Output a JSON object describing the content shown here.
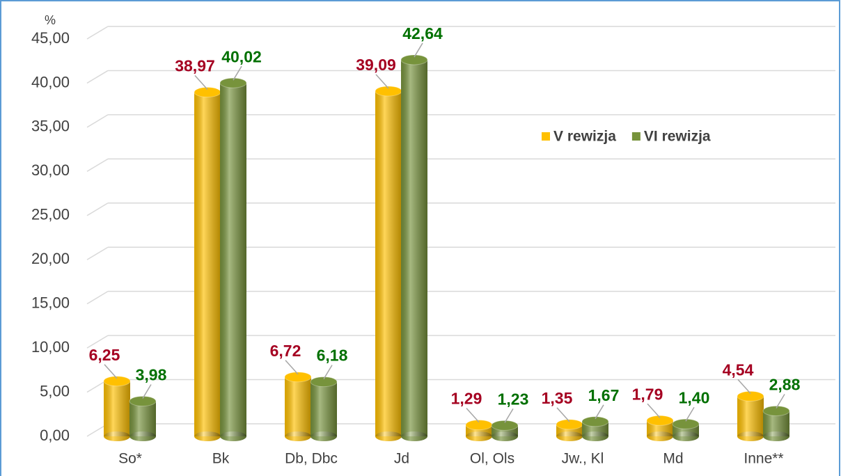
{
  "chart_data": {
    "type": "bar",
    "y_label": "%",
    "categories": [
      "So*",
      "Bk",
      "Db, Dbc",
      "Jd",
      "Ol, Ols",
      "Jw., Kl",
      "Md",
      "Inne**"
    ],
    "series": [
      {
        "name": "V rewizja",
        "color": "#ffc000",
        "label_color": "#a50021",
        "values": [
          6.25,
          38.97,
          6.72,
          39.09,
          1.29,
          1.35,
          1.79,
          4.54
        ],
        "value_labels": [
          "6,25",
          "38,97",
          "6,72",
          "39,09",
          "1,29",
          "1,35",
          "1,79",
          "4,54"
        ]
      },
      {
        "name": "VI rewizja",
        "color": "#77933c",
        "label_color": "#007000",
        "values": [
          3.98,
          40.02,
          6.18,
          42.64,
          1.23,
          1.67,
          1.4,
          2.88
        ],
        "value_labels": [
          "3,98",
          "40,02",
          "6,18",
          "42,64",
          "1,23",
          "1,67",
          "1,40",
          "2,88"
        ]
      }
    ],
    "ylim": [
      0,
      45
    ],
    "yticks": [
      {
        "value": 0,
        "label": "0,00"
      },
      {
        "value": 5,
        "label": "5,00"
      },
      {
        "value": 10,
        "label": "10,00"
      },
      {
        "value": 15,
        "label": "15,00"
      },
      {
        "value": 20,
        "label": "20,00"
      },
      {
        "value": 25,
        "label": "25,00"
      },
      {
        "value": 30,
        "label": "30,00"
      },
      {
        "value": 35,
        "label": "35,00"
      },
      {
        "value": 40,
        "label": "40,00"
      },
      {
        "value": 45,
        "label": "45,00"
      }
    ],
    "grid": true,
    "legend": "upper right"
  }
}
